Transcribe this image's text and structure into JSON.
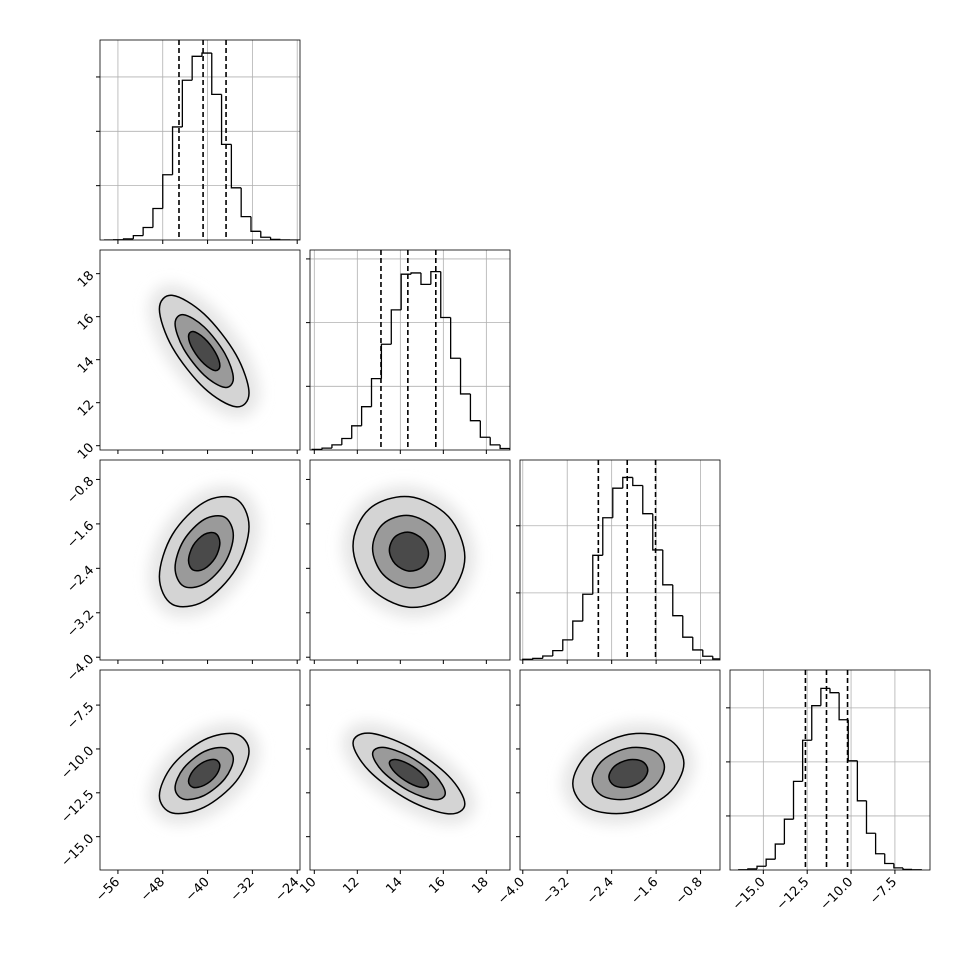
{
  "chart_data": {
    "type": "corner",
    "grid": true,
    "variables": [
      {
        "xlim": [
          -59.2,
          -23.5
        ],
        "xticks": [
          {
            "value": -56,
            "label": "−56"
          },
          {
            "value": -48,
            "label": "−48"
          },
          {
            "value": -40,
            "label": "−40"
          },
          {
            "value": -32,
            "label": "−32"
          },
          {
            "value": -24,
            "label": "−24"
          }
        ],
        "bins": [
          -58.5,
          -56.75,
          -55,
          -53.25,
          -51.5,
          -49.75,
          -48,
          -46.25,
          -44.5,
          -42.75,
          -41,
          -39.25,
          -37.5,
          -35.75,
          -34,
          -32.25,
          -30.5,
          -28.75,
          -27,
          -25.25,
          -23.5
        ],
        "counts": [
          0,
          2,
          10,
          40,
          115,
          290,
          600,
          1040,
          1470,
          1690,
          1720,
          1340,
          880,
          480,
          215,
          80,
          25,
          6,
          1,
          0
        ],
        "hist_ylim": [
          0,
          1840
        ],
        "hist_yticks": [
          500,
          1000,
          1500
        ],
        "quantiles": [
          -45.1,
          -40.8,
          -36.7
        ]
      },
      {
        "xlim": [
          9.8,
          19.1
        ],
        "xticks": [
          10,
          12,
          14,
          16,
          18
        ],
        "bins": [
          9.9,
          10.36,
          10.82,
          11.28,
          11.74,
          12.2,
          12.66,
          13.12,
          13.58,
          14.04,
          14.5,
          14.96,
          15.42,
          15.88,
          16.34,
          16.8,
          17.26,
          17.72,
          18.18,
          18.64,
          19.1
        ],
        "counts": [
          5,
          15,
          40,
          90,
          190,
          340,
          560,
          830,
          1100,
          1380,
          1390,
          1300,
          1400,
          1040,
          720,
          440,
          230,
          100,
          40,
          12
        ],
        "hist_ylim": [
          0,
          1570
        ],
        "hist_yticks": [
          500,
          1000,
          1500
        ],
        "quantiles": [
          13.1,
          14.35,
          15.65
        ]
      },
      {
        "xlim": [
          -4.05,
          -0.45
        ],
        "xticks": [
          {
            "value": -4.0,
            "label": "−4.0"
          },
          {
            "value": -3.2,
            "label": "−3.2"
          },
          {
            "value": -2.4,
            "label": "−2.4"
          },
          {
            "value": -1.6,
            "label": "−1.6"
          },
          {
            "value": -0.8,
            "label": "−0.8"
          }
        ],
        "bins": [
          -4.0,
          -3.82,
          -3.64,
          -3.46,
          -3.28,
          -3.1,
          -2.92,
          -2.74,
          -2.56,
          -2.38,
          -2.2,
          -2.02,
          -1.84,
          -1.66,
          -1.48,
          -1.3,
          -1.12,
          -0.94,
          -0.76,
          -0.58,
          -0.4
        ],
        "counts": [
          5,
          12,
          30,
          70,
          150,
          290,
          490,
          780,
          1060,
          1280,
          1360,
          1300,
          1090,
          820,
          560,
          330,
          170,
          75,
          28,
          8
        ],
        "hist_ylim": [
          0,
          1490
        ],
        "hist_yticks": [
          500,
          1000
        ],
        "quantiles": [
          -2.64,
          -2.12,
          -1.61
        ]
      },
      {
        "xlim": [
          -16.9,
          -5.5
        ],
        "xticks": [
          {
            "value": -15.0,
            "label": "−15.0"
          },
          {
            "value": -12.5,
            "label": "−12.5"
          },
          {
            "value": -10.0,
            "label": "−10.0"
          },
          {
            "value": -7.5,
            "label": "−7.5"
          }
        ],
        "bins": [
          -16.4,
          -15.88,
          -15.36,
          -14.84,
          -14.32,
          -13.8,
          -13.28,
          -12.76,
          -12.24,
          -11.72,
          -11.2,
          -10.68,
          -10.16,
          -9.64,
          -9.12,
          -8.6,
          -8.08,
          -7.56,
          -7.04,
          -6.52,
          -6.0
        ],
        "counts": [
          2,
          10,
          35,
          100,
          240,
          470,
          820,
          1200,
          1520,
          1680,
          1640,
          1390,
          1010,
          640,
          340,
          150,
          60,
          20,
          6,
          2
        ],
        "hist_ylim": [
          0,
          1850
        ],
        "hist_yticks": [
          500,
          1000,
          1500
        ],
        "quantiles": [
          -12.6,
          -11.4,
          -10.2
        ]
      }
    ],
    "panels": [
      {
        "contours": [
          {
            "x": [
              -32.6,
              -34.94,
              -40.6,
              -46.26,
              -48.6,
              -46.26,
              -40.6,
              -34.94
            ],
            "y": [
              12.45,
              14.24,
              16.12,
              16.99,
              16.35,
              14.56,
              12.68,
              11.81
            ]
          },
          {
            "x": [
              -35.4,
              -36.92,
              -40.6,
              -44.28,
              -45.8,
              -44.28,
              -40.6,
              -36.92
            ],
            "y": [
              13.13,
              14.29,
              15.52,
              16.09,
              15.67,
              14.51,
              13.28,
              12.71
            ]
          },
          {
            "x": [
              -37.8,
              -38.62,
              -40.6,
              -42.58,
              -43.4,
              -42.58,
              -40.6,
              -38.62
            ],
            "y": [
              13.72,
              14.34,
              15.0,
              15.31,
              15.08,
              14.46,
              13.8,
              13.49
            ]
          }
        ]
      },
      {
        "contours": [
          {
            "x": [
              -32.6,
              -34.94,
              -40.6,
              -46.26,
              -48.6,
              -46.26,
              -40.6,
              -34.94
            ],
            "y": [
              -1.65,
              -1.15,
              -1.21,
              -1.79,
              -2.55,
              -3.05,
              -2.99,
              -2.41
            ]
          },
          {
            "x": [
              -35.4,
              -36.92,
              -40.6,
              -44.28,
              -45.8,
              -44.28,
              -40.6,
              -36.92
            ],
            "y": [
              -1.81,
              -1.48,
              -1.52,
              -1.9,
              -2.39,
              -2.72,
              -2.68,
              -2.3
            ]
          },
          {
            "x": [
              -37.8,
              -38.62,
              -40.6,
              -42.58,
              -43.4,
              -42.58,
              -40.6,
              -38.62
            ],
            "y": [
              -1.94,
              -1.77,
              -1.79,
              -1.99,
              -2.26,
              -2.43,
              -2.41,
              -2.21
            ]
          }
        ]
      },
      {
        "contours": [
          {
            "x": [
              17.0,
              16.24,
              14.4,
              12.56,
              11.8,
              12.56,
              14.4,
              16.24
            ],
            "y": [
              -2.2,
              -1.47,
              -1.11,
              -1.33,
              -2.0,
              -2.73,
              -3.1,
              -2.87
            ]
          },
          {
            "x": [
              16.09,
              15.6,
              14.4,
              13.2,
              12.71,
              13.2,
              14.4,
              15.6
            ],
            "y": [
              -2.17,
              -1.69,
              -1.45,
              -1.6,
              -2.04,
              -2.51,
              -2.75,
              -2.6
            ]
          },
          {
            "x": [
              15.31,
              15.04,
              14.4,
              13.76,
              13.49,
              13.76,
              14.4,
              15.04
            ],
            "y": [
              -2.14,
              -1.88,
              -1.75,
              -1.83,
              -2.07,
              -2.32,
              -2.45,
              -2.37
            ]
          }
        ]
      },
      {
        "contours": [
          {
            "x": [
              -32.6,
              -34.94,
              -40.6,
              -46.26,
              -48.6,
              -46.26,
              -40.6,
              -34.94
            ],
            "y": [
              -10.13,
              -9.15,
              -9.48,
              -10.94,
              -12.67,
              -13.65,
              -13.32,
              -11.86
            ]
          },
          {
            "x": [
              -35.4,
              -36.92,
              -40.6,
              -44.28,
              -45.8,
              -44.28,
              -40.6,
              -36.92
            ],
            "y": [
              -10.58,
              -9.94,
              -10.15,
              -11.1,
              -12.22,
              -12.86,
              -12.65,
              -11.7
            ]
          },
          {
            "x": [
              -37.8,
              -38.62,
              -40.6,
              -42.58,
              -43.4,
              -42.58,
              -40.6,
              -38.62
            ],
            "y": [
              -10.96,
              -10.61,
              -10.73,
              -11.24,
              -11.84,
              -12.19,
              -12.07,
              -11.56
            ]
          }
        ]
      },
      {
        "contours": [
          {
            "x": [
              17.0,
              16.24,
              14.4,
              12.56,
              11.8,
              12.56,
              14.4,
              16.24
            ],
            "y": [
              -13.13,
              -11.54,
              -9.88,
              -9.1,
              -9.67,
              -11.26,
              -12.92,
              -13.7
            ]
          },
          {
            "x": [
              16.09,
              15.6,
              14.4,
              13.2,
              12.71,
              13.2,
              14.4,
              15.6
            ],
            "y": [
              -12.52,
              -11.49,
              -10.41,
              -9.91,
              -10.28,
              -11.31,
              -12.39,
              -12.89
            ]
          },
          {
            "x": [
              15.31,
              15.04,
              14.4,
              13.76,
              13.49,
              13.76,
              14.4,
              15.04
            ],
            "y": [
              -12.0,
              -11.45,
              -10.87,
              -10.6,
              -10.8,
              -11.35,
              -11.93,
              -12.2
            ]
          }
        ]
      },
      {
        "contours": [
          {
            "x": [
              -1.1,
              -1.39,
              -2.1,
              -2.81,
              -3.1,
              -2.81,
              -2.1,
              -1.39
            ],
            "y": [
              -10.82,
              -9.42,
              -9.17,
              -10.23,
              -11.98,
              -13.38,
              -13.63,
              -12.57
            ]
          },
          {
            "x": [
              -1.45,
              -1.64,
              -2.1,
              -2.56,
              -2.75,
              -2.56,
              -2.1,
              -1.64
            ],
            "y": [
              -11.03,
              -10.11,
              -9.95,
              -10.64,
              -11.77,
              -12.69,
              -12.85,
              -12.16
            ]
          },
          {
            "x": [
              -1.75,
              -1.85,
              -2.1,
              -2.35,
              -2.45,
              -2.35,
              -2.1,
              -1.85
            ],
            "y": [
              -11.2,
              -10.71,
              -10.62,
              -10.99,
              -11.6,
              -12.09,
              -12.18,
              -11.81
            ]
          }
        ]
      }
    ]
  }
}
